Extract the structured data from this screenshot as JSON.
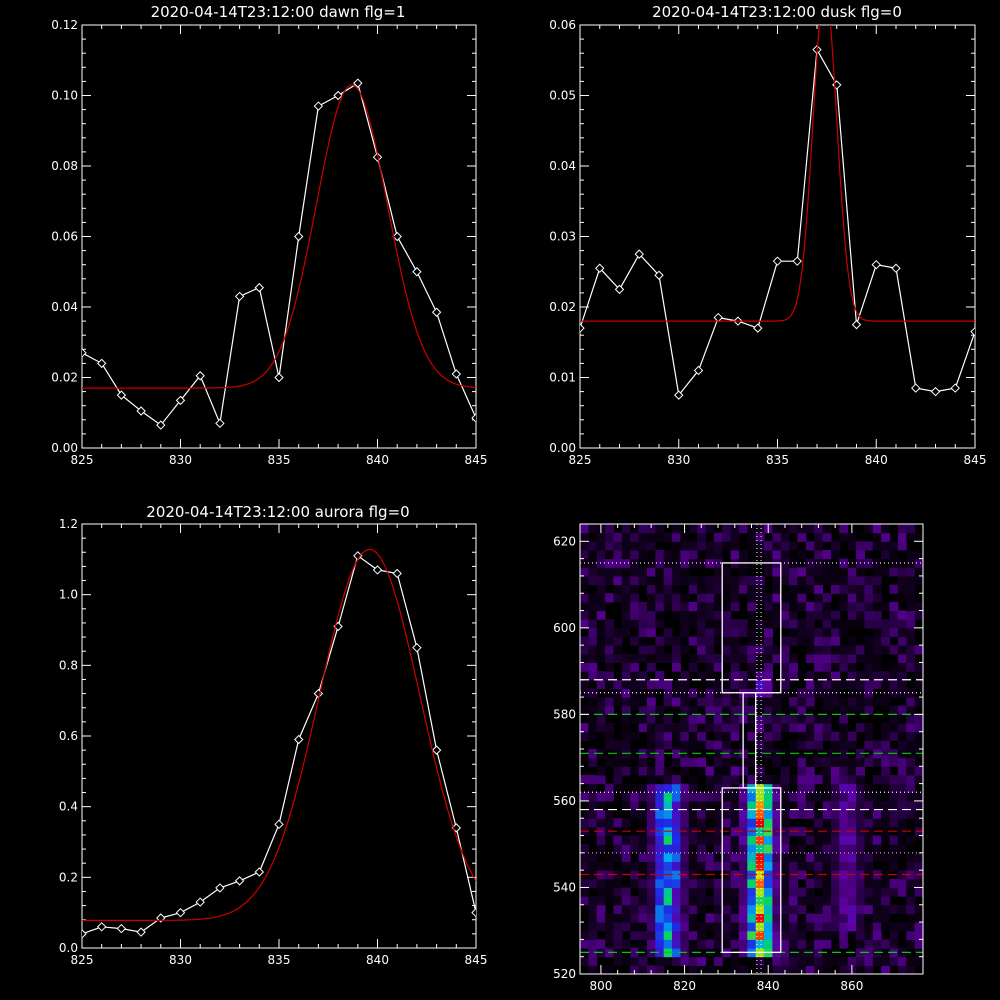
{
  "chart_data": [
    {
      "type": "line",
      "title": "2020-04-14T23:12:00 dawn flg=1",
      "xlim": [
        825,
        845
      ],
      "ylim": [
        0,
        0.12
      ],
      "xticks": [
        "825",
        "830",
        "835",
        "840",
        "845"
      ],
      "yticks": [
        "0.00",
        "0.02",
        "0.04",
        "0.06",
        "0.08",
        "0.10",
        "0.12"
      ],
      "series": [
        {
          "color": "#ffffff",
          "markers": "diamond",
          "x": [
            825,
            826,
            827,
            828,
            829,
            830,
            831,
            832,
            833,
            834,
            835,
            836,
            837,
            838,
            839,
            840,
            841,
            842,
            843,
            844,
            845
          ],
          "y": [
            0.027,
            0.024,
            0.015,
            0.0105,
            0.0065,
            0.0135,
            0.0205,
            0.007,
            0.043,
            0.0455,
            0.02,
            0.06,
            0.097,
            0.1,
            0.1035,
            0.0825,
            0.06,
            0.05,
            0.0385,
            0.021,
            0.0085
          ]
        },
        {
          "color": "#cc0000",
          "fit": "gaussian",
          "baseline": 0.017,
          "amplitude": 0.086,
          "center": 838.7,
          "sigma": 1.8
        }
      ]
    },
    {
      "type": "line",
      "title": "2020-04-14T23:12:00 dusk flg=0",
      "xlim": [
        825,
        845
      ],
      "ylim": [
        0,
        0.06
      ],
      "xticks": [
        "825",
        "830",
        "835",
        "840",
        "845"
      ],
      "yticks": [
        "0.00",
        "0.01",
        "0.02",
        "0.03",
        "0.04",
        "0.05",
        "0.06"
      ],
      "series": [
        {
          "color": "#ffffff",
          "markers": "diamond",
          "x": [
            825,
            826,
            827,
            828,
            829,
            830,
            831,
            832,
            833,
            834,
            835,
            836,
            837,
            838,
            839,
            840,
            841,
            842,
            843,
            844,
            845
          ],
          "y": [
            0.017,
            0.0255,
            0.0225,
            0.0275,
            0.0245,
            0.0075,
            0.011,
            0.0185,
            0.018,
            0.017,
            0.0265,
            0.0265,
            0.0565,
            0.0515,
            0.0175,
            0.026,
            0.0255,
            0.0085,
            0.008,
            0.0085,
            0.0165
          ]
        },
        {
          "color": "#cc0000",
          "fit": "gaussian",
          "baseline": 0.018,
          "amplitude": 0.047,
          "center": 837.4,
          "sigma": 0.6
        }
      ]
    },
    {
      "type": "line",
      "title": "2020-04-14T23:12:00 aurora flg=0",
      "xlim": [
        825,
        845
      ],
      "ylim": [
        0,
        1.2
      ],
      "xticks": [
        "825",
        "830",
        "835",
        "840",
        "845"
      ],
      "yticks": [
        "0.0",
        "0.2",
        "0.4",
        "0.6",
        "0.8",
        "1.0",
        "1.2"
      ],
      "series": [
        {
          "color": "#ffffff",
          "markers": "diamond",
          "x": [
            825,
            826,
            827,
            828,
            829,
            830,
            831,
            832,
            833,
            834,
            835,
            836,
            837,
            838,
            839,
            840,
            841,
            842,
            843,
            844,
            845
          ],
          "y": [
            0.04,
            0.06,
            0.055,
            0.045,
            0.085,
            0.1,
            0.13,
            0.17,
            0.19,
            0.215,
            0.35,
            0.59,
            0.72,
            0.91,
            1.11,
            1.07,
            1.06,
            0.85,
            0.56,
            0.34,
            0.1
          ]
        },
        {
          "color": "#cc0000",
          "fit": "gaussian",
          "baseline": 0.078,
          "amplitude": 1.05,
          "center": 839.6,
          "sigma": 2.55
        }
      ]
    },
    {
      "type": "heatmap",
      "xlim": [
        795,
        877
      ],
      "ylim": [
        520,
        624
      ],
      "xticks": [
        "800",
        "820",
        "840",
        "860"
      ],
      "yticks": [
        "520",
        "540",
        "560",
        "580",
        "600",
        "620"
      ],
      "grid": "2-unit bins, emission intensity",
      "emission_bands": [
        {
          "x_center": 816,
          "x_halfwidth": 4,
          "y_range": [
            525,
            563
          ],
          "peak": 0.7
        },
        {
          "x_center": 838,
          "x_halfwidth": 4,
          "y_range": [
            525,
            563
          ],
          "peak": 1.0
        },
        {
          "x_center": 859,
          "x_halfwidth": 4,
          "y_range": [
            530,
            563
          ],
          "peak": 0.3
        },
        {
          "x_center": 839,
          "x_halfwidth": 2,
          "y_range": [
            584,
            590
          ],
          "peak": 0.45
        }
      ],
      "overlays": {
        "white_boxes": [
          [
            829,
            585,
            843,
            615
          ],
          [
            829,
            525,
            843,
            563
          ],
          [
            834,
            563,
            837,
            585
          ]
        ],
        "vertical_dotted": [
          837.3,
          838.3
        ],
        "horizontal_lines": [
          {
            "y": 615,
            "style": "dotted",
            "color": "#ffffff"
          },
          {
            "y": 588,
            "style": "dashed",
            "color": "#ffffff"
          },
          {
            "y": 585,
            "style": "dotted",
            "color": "#ffffff"
          },
          {
            "y": 580,
            "style": "dashed",
            "color": "#00cc00"
          },
          {
            "y": 571,
            "style": "dashed",
            "color": "#00cc00"
          },
          {
            "y": 562,
            "style": "dotted",
            "color": "#ffffff"
          },
          {
            "y": 558,
            "style": "dashed",
            "color": "#ffffff"
          },
          {
            "y": 553,
            "style": "dashed",
            "color": "#cc0000"
          },
          {
            "y": 548,
            "style": "dotted",
            "color": "#aaaaaa"
          },
          {
            "y": 543,
            "style": "dashed",
            "color": "#cc0000"
          },
          {
            "y": 525,
            "style": "dashed",
            "color": "#00cc00"
          }
        ]
      }
    }
  ]
}
